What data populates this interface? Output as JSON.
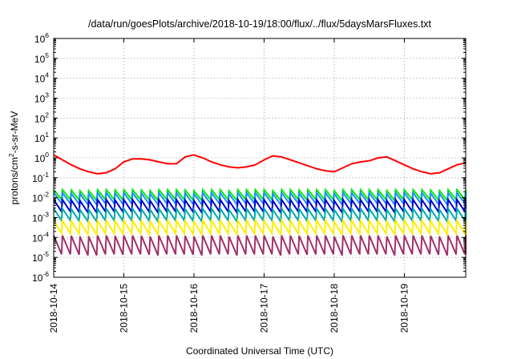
{
  "chart_data": {
    "type": "line",
    "title": "/data/run/goesPlots/archive/2018-10-19/18:00/flux/../flux/5daysMarsFluxes.txt",
    "xlabel": "Coordinated Universal Time (UTC)",
    "ylabel": {
      "prefix": "protons/cm",
      "superscript": "2",
      "suffix": "-s-sr-MeV"
    },
    "yscale": "log",
    "ylim_exponent": [
      -6,
      6
    ],
    "y_tick_base": "10",
    "y_tick_exponents": [
      "6",
      "5",
      "4",
      "3",
      "2",
      "1",
      "0",
      "-1",
      "-2",
      "-3",
      "-4",
      "-5",
      "-6"
    ],
    "xlim": [
      "2018-10-14T00:00",
      "2018-10-19T21:00"
    ],
    "x_ticks": [
      "2018-10-14",
      "2018-10-15",
      "2018-10-16",
      "2018-10-17",
      "2018-10-18",
      "2018-10-19"
    ],
    "grid": true,
    "legend": "none",
    "sawtooth": {
      "start": "2018-10-14T00:00",
      "end": "2018-10-19T21:00",
      "period_hours": 3
    },
    "series": [
      {
        "color": "#ff0000",
        "values_log10": [
          0.15,
          -0.1,
          -0.35,
          -0.55,
          -0.7,
          -0.8,
          -0.75,
          -0.55,
          -0.2,
          -0.05,
          -0.05,
          -0.1,
          -0.2,
          -0.3,
          -0.3,
          0.05,
          0.15,
          0.0,
          -0.2,
          -0.35,
          -0.45,
          -0.5,
          -0.45,
          -0.35,
          -0.1,
          0.1,
          0.05,
          -0.1,
          -0.25,
          -0.4,
          -0.55,
          -0.65,
          -0.7,
          -0.5,
          -0.3,
          -0.2,
          -0.15,
          0.0,
          0.05,
          -0.15,
          -0.35,
          -0.55,
          -0.7,
          -0.8,
          -0.75,
          -0.55,
          -0.35,
          -0.25,
          -0.3,
          -0.3,
          -0.3,
          -0.05,
          0.1,
          0.0,
          -0.15,
          -0.3,
          -0.4,
          -0.4,
          -0.35,
          -0.25,
          -0.2,
          -0.25,
          -0.3,
          -0.1,
          0.1,
          0.05,
          -0.1,
          -0.2,
          -0.3,
          -0.45,
          -0.55,
          -0.5,
          -0.3,
          -0.2,
          -0.2,
          0.0,
          0.05
        ]
      },
      {
        "color": "#00ee00",
        "values_log10": [
          -1.6,
          -1.6,
          -1.62,
          -1.65,
          -1.65,
          -1.6,
          -1.6,
          -1.62,
          -1.6,
          -1.6,
          -1.62,
          -1.65,
          -1.6,
          -1.6,
          -1.6,
          -1.62,
          -1.65,
          -1.6,
          -1.6,
          -1.6,
          -1.65,
          -1.6,
          -1.6,
          -1.6,
          -1.6,
          -1.65,
          -1.6,
          -1.6,
          -1.62,
          -1.6,
          -1.6,
          -1.6,
          -1.65,
          -1.6,
          -1.6,
          -1.6,
          -1.6,
          -1.6,
          -1.65,
          -1.6,
          -1.6,
          -1.6,
          -1.6,
          -1.62,
          -1.65,
          -1.6,
          -1.6,
          -1.6,
          -1.6,
          -1.65,
          -1.6,
          -1.6,
          -1.6,
          -1.6,
          -1.55,
          -1.5,
          -1.55,
          -1.6,
          -1.6,
          -1.6,
          -1.62,
          -1.6,
          -1.6,
          -1.6,
          -1.5,
          -1.45,
          -1.5,
          -1.55,
          -1.6,
          -1.6,
          -1.6,
          -1.6,
          -1.6,
          -1.6,
          -1.6,
          -1.6,
          -1.6
        ],
        "drop_log10": 0.5
      },
      {
        "color": "#1e90ff",
        "values_log10": [
          -1.75,
          -1.75,
          -1.78,
          -1.8,
          -1.8,
          -1.75,
          -1.75,
          -1.78,
          -1.75,
          -1.75,
          -1.78,
          -1.8,
          -1.75,
          -1.75,
          -1.75,
          -1.78,
          -1.8,
          -1.75,
          -1.75,
          -1.75,
          -1.8,
          -1.75,
          -1.75,
          -1.75,
          -1.75,
          -1.8,
          -1.75,
          -1.75,
          -1.78,
          -1.75,
          -1.75,
          -1.75,
          -1.8,
          -1.75,
          -1.75,
          -1.75,
          -1.75,
          -1.75,
          -1.8,
          -1.75,
          -1.75,
          -1.75,
          -1.75,
          -1.78,
          -1.8,
          -1.75,
          -1.75,
          -1.75,
          -1.75,
          -1.8,
          -1.75,
          -1.75,
          -1.75,
          -1.75,
          -1.7,
          -1.65,
          -1.7,
          -1.75,
          -1.75,
          -1.75,
          -1.78,
          -1.75,
          -1.75,
          -1.75,
          -1.65,
          -1.6,
          -1.65,
          -1.7,
          -1.75,
          -1.75,
          -1.75,
          -1.75,
          -1.75,
          -1.75,
          -1.75,
          -1.75,
          -1.75
        ],
        "drop_log10": 0.55
      },
      {
        "color": "#0000cc",
        "values_log10": [
          -2.1,
          -2.1,
          -2.12,
          -2.15,
          -2.15,
          -2.1,
          -2.1,
          -2.12,
          -2.1,
          -2.1,
          -2.12,
          -2.15,
          -2.1,
          -2.1,
          -2.1,
          -2.12,
          -2.15,
          -2.1,
          -2.1,
          -2.1,
          -2.15,
          -2.1,
          -2.1,
          -2.1,
          -2.1,
          -2.15,
          -2.1,
          -2.1,
          -2.12,
          -2.1,
          -2.1,
          -2.1,
          -2.15,
          -2.1,
          -2.1,
          -2.1,
          -2.1,
          -2.1,
          -2.15,
          -2.1,
          -2.1,
          -2.1,
          -2.1,
          -2.12,
          -2.15,
          -2.1,
          -2.1,
          -2.1,
          -2.1,
          -2.15,
          -2.1,
          -2.1,
          -2.1,
          -2.1,
          -2.05,
          -2.0,
          -2.05,
          -2.1,
          -2.1,
          -2.1,
          -2.12,
          -2.1,
          -2.1,
          -2.1,
          -2.0,
          -1.95,
          -2.0,
          -2.05,
          -2.1,
          -2.1,
          -2.1,
          -2.1,
          -2.1,
          -2.1,
          -2.1,
          -2.1,
          -2.1
        ],
        "drop_log10": 0.6
      },
      {
        "color": "#00aaaa",
        "values_log10": [
          -2.55,
          -2.55,
          -2.57,
          -2.6,
          -2.6,
          -2.55,
          -2.55,
          -2.57,
          -2.55,
          -2.55,
          -2.57,
          -2.6,
          -2.55,
          -2.55,
          -2.55,
          -2.57,
          -2.6,
          -2.55,
          -2.55,
          -2.55,
          -2.6,
          -2.55,
          -2.55,
          -2.55,
          -2.55,
          -2.6,
          -2.55,
          -2.55,
          -2.57,
          -2.55,
          -2.55,
          -2.55,
          -2.6,
          -2.55,
          -2.55,
          -2.55,
          -2.55,
          -2.55,
          -2.6,
          -2.55,
          -2.55,
          -2.55,
          -2.55,
          -2.57,
          -2.6,
          -2.55,
          -2.55,
          -2.55,
          -2.55,
          -2.6,
          -2.55,
          -2.55,
          -2.55,
          -2.55,
          -2.5,
          -2.45,
          -2.5,
          -2.55,
          -2.55,
          -2.55,
          -2.57,
          -2.55,
          -2.55,
          -2.55,
          -2.45,
          -2.4,
          -2.45,
          -2.5,
          -2.55,
          -2.55,
          -2.55,
          -2.55,
          -2.55,
          -2.55,
          -2.55,
          -2.55,
          -2.55
        ],
        "drop_log10": 0.6
      },
      {
        "color": "#ffee00",
        "values_log10": [
          -3.15,
          -3.15,
          -3.17,
          -3.2,
          -3.2,
          -3.15,
          -3.15,
          -3.17,
          -3.15,
          -3.15,
          -3.17,
          -3.2,
          -3.15,
          -3.15,
          -3.15,
          -3.17,
          -3.2,
          -3.15,
          -3.15,
          -3.15,
          -3.2,
          -3.15,
          -3.15,
          -3.15,
          -3.15,
          -3.2,
          -3.15,
          -3.15,
          -3.17,
          -3.15,
          -3.15,
          -3.15,
          -3.2,
          -3.15,
          -3.15,
          -3.15,
          -3.15,
          -3.15,
          -3.2,
          -3.15,
          -3.15,
          -3.15,
          -3.15,
          -3.17,
          -3.2,
          -3.15,
          -3.15,
          -3.15,
          -3.15,
          -3.2,
          -3.15,
          -3.15,
          -3.15,
          -3.15,
          -3.1,
          -3.05,
          -3.1,
          -3.15,
          -3.15,
          -3.15,
          -3.17,
          -3.15,
          -3.15,
          -3.15,
          -3.05,
          -3.0,
          -3.05,
          -3.1,
          -3.15,
          -3.15,
          -3.15,
          -3.15,
          -3.15,
          -3.15,
          -3.15,
          -3.15,
          -3.15
        ],
        "drop_log10": 0.65
      },
      {
        "color": "#a0306a",
        "values_log10": [
          -3.9,
          -3.9,
          -3.92,
          -3.95,
          -3.95,
          -3.9,
          -3.9,
          -3.92,
          -3.9,
          -3.9,
          -3.92,
          -3.95,
          -3.9,
          -3.9,
          -3.9,
          -3.92,
          -3.95,
          -3.9,
          -3.9,
          -3.9,
          -3.95,
          -3.9,
          -3.9,
          -3.9,
          -3.9,
          -3.95,
          -3.9,
          -3.9,
          -3.92,
          -3.9,
          -3.9,
          -3.9,
          -3.95,
          -3.9,
          -3.9,
          -3.9,
          -3.9,
          -3.9,
          -3.95,
          -3.9,
          -3.9,
          -3.9,
          -3.9,
          -3.92,
          -3.95,
          -3.9,
          -3.9,
          -3.9,
          -3.9,
          -3.95,
          -3.9,
          -3.9,
          -3.9,
          -3.9,
          -3.85,
          -3.8,
          -3.85,
          -3.9,
          -3.9,
          -3.9,
          -3.92,
          -3.9,
          -3.9,
          -3.9,
          -3.8,
          -3.75,
          -3.8,
          -3.85,
          -3.9,
          -3.9,
          -3.9,
          -3.9,
          -3.9,
          -3.9,
          -3.9,
          -3.9,
          -3.9
        ],
        "drop_log10": 0.95
      }
    ]
  }
}
